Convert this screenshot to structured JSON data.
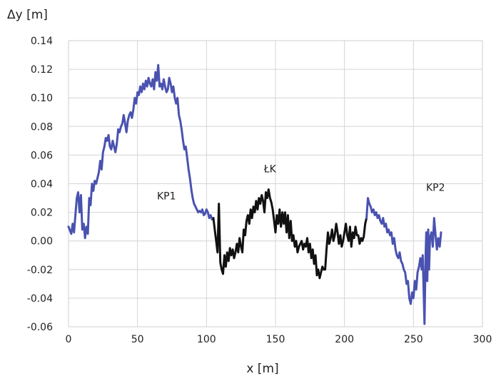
{
  "chart_data": {
    "type": "line",
    "title": "",
    "ylabel": "Δy [m]",
    "xlabel": "x [m]",
    "xlim": [
      0,
      300
    ],
    "ylim": [
      -0.06,
      0.14
    ],
    "xticks": [
      0,
      50,
      100,
      150,
      200,
      250,
      300
    ],
    "xtick_labels": [
      "0",
      "50",
      "100",
      "150",
      "200",
      "250",
      "300"
    ],
    "yticks": [
      -0.06,
      -0.04,
      -0.02,
      0.0,
      0.02,
      0.04,
      0.06,
      0.08,
      0.1,
      0.12,
      0.14
    ],
    "ytick_labels": [
      "-0.06",
      "-0.04",
      "-0.02",
      "0.00",
      "0.02",
      "0.04",
      "0.06",
      "0.08",
      "0.10",
      "0.12",
      "0.14"
    ],
    "grid": true,
    "colors": {
      "KP": "#4a52b0",
      "LK": "#111111",
      "grid": "#d4d4d4"
    },
    "annotations": [
      {
        "text": "KP1",
        "x": 71,
        "y": 0.029
      },
      {
        "text": "ŁK",
        "x": 146,
        "y": 0.048
      },
      {
        "text": "KP2",
        "x": 266,
        "y": 0.035
      }
    ],
    "series": [
      {
        "segment": "KP1",
        "color_key": "KP",
        "x": [
          0,
          2,
          3,
          4,
          6,
          7,
          8,
          9,
          10,
          11,
          12,
          13,
          14,
          15,
          16,
          17,
          18,
          19,
          20,
          22,
          23,
          24,
          25,
          26,
          27,
          28,
          29,
          30,
          31,
          32,
          33,
          34,
          35,
          36,
          37,
          38,
          39,
          40,
          41,
          42,
          43,
          44,
          45,
          46,
          47,
          48,
          49,
          50,
          51,
          52,
          53,
          54,
          55,
          56,
          57,
          58,
          59,
          60,
          61,
          62,
          63,
          64,
          65,
          66,
          67,
          68,
          69,
          70,
          71,
          72,
          73,
          74,
          75,
          76,
          77,
          78,
          79,
          80,
          81,
          82,
          83,
          84,
          85,
          86,
          87,
          88,
          89,
          90,
          91,
          92,
          93,
          94,
          95,
          96,
          97,
          98,
          99,
          100,
          101,
          102,
          103,
          104,
          105
        ],
        "y": [
          0.01,
          0.005,
          0.012,
          0.006,
          0.03,
          0.034,
          0.02,
          0.032,
          0.008,
          0.012,
          0.002,
          0.01,
          0.005,
          0.03,
          0.025,
          0.04,
          0.035,
          0.042,
          0.04,
          0.048,
          0.056,
          0.05,
          0.062,
          0.066,
          0.072,
          0.07,
          0.074,
          0.066,
          0.064,
          0.07,
          0.066,
          0.062,
          0.068,
          0.078,
          0.076,
          0.08,
          0.082,
          0.088,
          0.082,
          0.076,
          0.084,
          0.088,
          0.09,
          0.086,
          0.092,
          0.1,
          0.096,
          0.104,
          0.102,
          0.108,
          0.104,
          0.11,
          0.106,
          0.112,
          0.108,
          0.114,
          0.11,
          0.108,
          0.113,
          0.106,
          0.118,
          0.112,
          0.123,
          0.108,
          0.11,
          0.106,
          0.113,
          0.108,
          0.104,
          0.106,
          0.114,
          0.11,
          0.104,
          0.108,
          0.1,
          0.096,
          0.1,
          0.088,
          0.084,
          0.078,
          0.07,
          0.064,
          0.066,
          0.058,
          0.05,
          0.044,
          0.036,
          0.03,
          0.026,
          0.024,
          0.022,
          0.02,
          0.021,
          0.02,
          0.022,
          0.018,
          0.019,
          0.022,
          0.02,
          0.016,
          0.018,
          0.015,
          0.016
        ]
      },
      {
        "segment": "ŁK",
        "color_key": "LK",
        "x": [
          105,
          106,
          107,
          108,
          109,
          110,
          111,
          112,
          113,
          114,
          115,
          116,
          117,
          118,
          119,
          120,
          121,
          122,
          123,
          124,
          125,
          126,
          127,
          128,
          129,
          130,
          131,
          132,
          133,
          134,
          135,
          136,
          137,
          138,
          139,
          140,
          141,
          142,
          143,
          144,
          145,
          146,
          147,
          148,
          149,
          150,
          151,
          152,
          153,
          154,
          155,
          156,
          157,
          158,
          159,
          160,
          161,
          162,
          163,
          164,
          165,
          166,
          167,
          168,
          169,
          170,
          171,
          172,
          173,
          174,
          175,
          176,
          177,
          178,
          179,
          180,
          181,
          182,
          183,
          184,
          185,
          186,
          187,
          188,
          189,
          190,
          191,
          192,
          193,
          194,
          195,
          196,
          197,
          198,
          199,
          200,
          201,
          202,
          203,
          204,
          205,
          206,
          207,
          208,
          209,
          210,
          211,
          212,
          213,
          214,
          215,
          216
        ],
        "y": [
          0.016,
          0.008,
          0.0,
          -0.008,
          0.026,
          -0.015,
          -0.02,
          -0.023,
          -0.01,
          -0.018,
          -0.008,
          -0.014,
          -0.005,
          -0.01,
          -0.006,
          -0.012,
          -0.008,
          -0.002,
          -0.008,
          0.002,
          -0.004,
          -0.008,
          0.008,
          0.004,
          0.014,
          0.018,
          0.012,
          0.022,
          0.016,
          0.024,
          0.02,
          0.028,
          0.022,
          0.03,
          0.026,
          0.032,
          0.028,
          0.02,
          0.034,
          0.03,
          0.036,
          0.03,
          0.027,
          0.022,
          0.014,
          0.006,
          0.018,
          0.012,
          0.022,
          0.01,
          0.02,
          0.012,
          0.02,
          0.006,
          0.018,
          0.002,
          0.014,
          0.0,
          0.004,
          -0.004,
          0.0,
          -0.008,
          -0.004,
          -0.002,
          0.0,
          -0.006,
          -0.002,
          -0.004,
          0.002,
          -0.008,
          -0.002,
          -0.012,
          -0.006,
          -0.016,
          -0.01,
          -0.024,
          -0.02,
          -0.026,
          -0.022,
          -0.018,
          -0.02,
          -0.02,
          -0.006,
          0.006,
          -0.002,
          0.002,
          0.008,
          0.0,
          0.004,
          0.012,
          0.006,
          -0.002,
          0.004,
          -0.004,
          0.0,
          0.006,
          0.012,
          0.004,
          0.0,
          0.01,
          -0.004,
          0.006,
          0.002,
          0.01,
          0.004,
          0.004,
          -0.002,
          0.002,
          0.0,
          0.003,
          0.012,
          0.016
        ]
      },
      {
        "segment": "KP2",
        "color_key": "KP",
        "x": [
          216,
          217,
          218,
          219,
          220,
          221,
          222,
          223,
          224,
          225,
          226,
          227,
          228,
          229,
          230,
          231,
          232,
          233,
          234,
          235,
          236,
          237,
          238,
          239,
          240,
          241,
          242,
          243,
          244,
          245,
          246,
          247,
          248,
          249,
          250,
          251,
          252,
          253,
          254,
          255,
          256,
          256.7,
          257.3,
          258,
          258.7,
          259.3,
          260,
          260.7,
          261.3,
          262,
          263,
          264,
          265,
          266,
          267,
          268,
          269,
          270
        ],
        "y": [
          0.016,
          0.03,
          0.026,
          0.024,
          0.02,
          0.022,
          0.018,
          0.02,
          0.016,
          0.018,
          0.014,
          0.012,
          0.016,
          0.01,
          0.012,
          0.006,
          0.008,
          0.004,
          0.006,
          -0.002,
          0.002,
          -0.006,
          -0.01,
          -0.012,
          -0.008,
          -0.014,
          -0.016,
          -0.02,
          -0.022,
          -0.03,
          -0.028,
          -0.04,
          -0.044,
          -0.036,
          -0.04,
          -0.028,
          -0.034,
          -0.022,
          -0.018,
          -0.012,
          -0.02,
          -0.01,
          -0.03,
          -0.058,
          -0.014,
          0.006,
          -0.028,
          0.008,
          -0.02,
          0.002,
          0.006,
          -0.004,
          0.016,
          0.004,
          -0.006,
          0.002,
          -0.004,
          0.006
        ]
      }
    ]
  }
}
